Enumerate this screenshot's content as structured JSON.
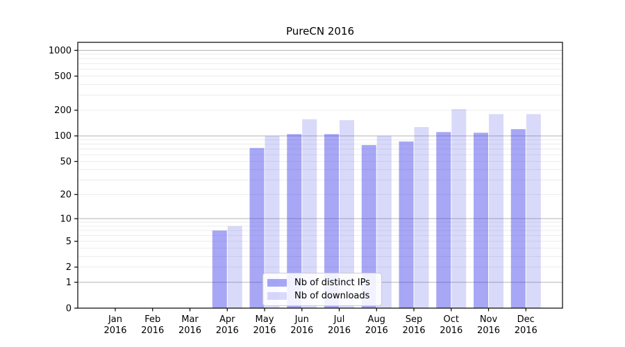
{
  "chart_data": {
    "type": "bar",
    "title": "PureCN 2016",
    "categories": [
      "Jan",
      "Feb",
      "Mar",
      "Apr",
      "May",
      "Jun",
      "Jul",
      "Aug",
      "Sep",
      "Oct",
      "Nov",
      "Dec"
    ],
    "category_year": "2016",
    "series": [
      {
        "name": "Nb of distinct IPs",
        "color": "rgba(59,59,235,0.45)",
        "values": [
          0,
          0,
          0,
          7,
          72,
          105,
          105,
          78,
          86,
          111,
          109,
          120
        ]
      },
      {
        "name": "Nb of downloads",
        "color": "rgba(82,82,232,0.22)",
        "values": [
          0,
          0,
          0,
          8,
          100,
          157,
          153,
          100,
          127,
          206,
          180,
          180
        ]
      }
    ],
    "yaxis": {
      "scale": "log1p",
      "ticks": [
        0,
        1,
        2,
        5,
        10,
        20,
        50,
        100,
        200,
        500,
        1000
      ],
      "major_grid_at": [
        1,
        10,
        100,
        1000
      ],
      "max": 1000
    },
    "xlabel": "",
    "ylabel": "",
    "grid": true,
    "legend_position": "inside-bottom-center"
  },
  "colors": {
    "grid_minor": "#ececec",
    "grid_major": "#b3b3b3",
    "axis": "#000000",
    "legend_border": "#cccccc",
    "legend_bg": "rgba(255,255,255,0.85)"
  }
}
